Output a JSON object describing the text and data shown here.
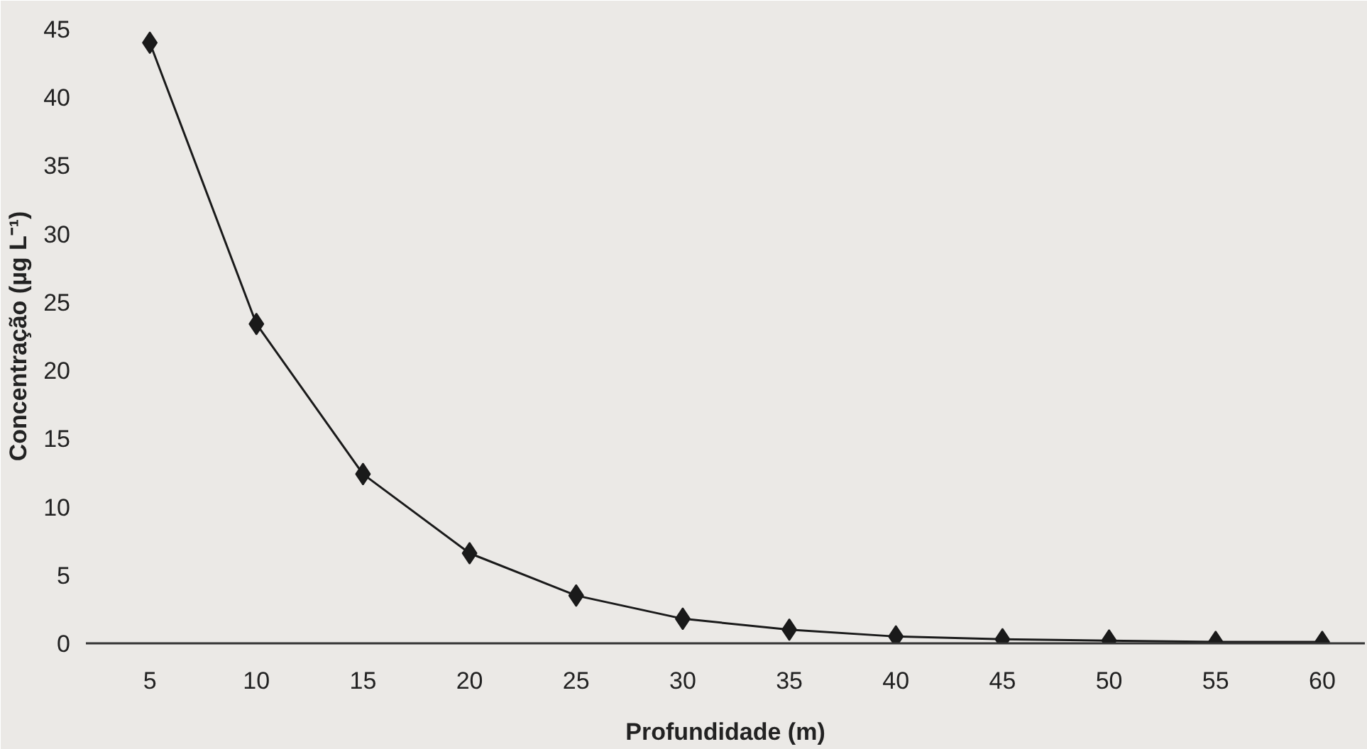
{
  "chart_data": {
    "type": "line",
    "xlabel": "Profundidade (m)",
    "ylabel": "Concentração (µg L⁻¹)",
    "x": [
      5,
      10,
      15,
      20,
      25,
      30,
      35,
      40,
      45,
      50,
      55,
      60
    ],
    "series": [
      {
        "color": "#1a1a1a",
        "values": [
          44.0,
          23.4,
          12.4,
          6.6,
          3.5,
          1.8,
          1.0,
          0.5,
          0.3,
          0.2,
          0.1,
          0.1
        ]
      }
    ],
    "xlim": [
      2,
      62
    ],
    "ylim": [
      0,
      45
    ],
    "xticks": [
      5,
      10,
      15,
      20,
      25,
      30,
      35,
      40,
      45,
      50,
      55,
      60
    ],
    "yticks": [
      0,
      5,
      10,
      15,
      20,
      25,
      30,
      35,
      40,
      45
    ],
    "marker": "diamond",
    "line_style": "solid",
    "grid": false
  }
}
